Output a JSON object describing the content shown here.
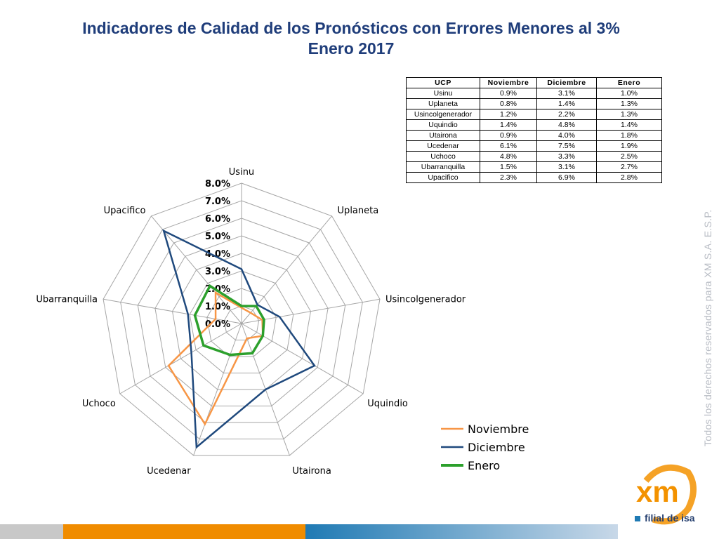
{
  "title": {
    "line1": "Indicadores de Calidad de los Pronósticos con Errores Menores al 3%",
    "line2": "Enero 2017"
  },
  "table": {
    "headers": [
      "UCP",
      "Noviembre",
      "Diciembre",
      "Enero"
    ],
    "rows": [
      [
        "Usinu",
        "0.9%",
        "3.1%",
        "1.0%"
      ],
      [
        "Uplaneta",
        "0.8%",
        "1.4%",
        "1.3%"
      ],
      [
        "Usincolgenerador",
        "1.2%",
        "2.2%",
        "1.3%"
      ],
      [
        "Uquindio",
        "1.4%",
        "4.8%",
        "1.4%"
      ],
      [
        "Utairona",
        "0.9%",
        "4.0%",
        "1.8%"
      ],
      [
        "Ucedenar",
        "6.1%",
        "7.5%",
        "1.9%"
      ],
      [
        "Uchoco",
        "4.8%",
        "3.3%",
        "2.5%"
      ],
      [
        "Ubarranquilla",
        "1.5%",
        "3.1%",
        "2.7%"
      ],
      [
        "Upacifico",
        "2.3%",
        "6.9%",
        "2.8%"
      ]
    ]
  },
  "chart_data": {
    "type": "radar",
    "categories": [
      "Usinu",
      "Uplaneta",
      "Usincolgenerador",
      "Uquindio",
      "Utairona",
      "Ucedenar",
      "Uchoco",
      "Ubarranquilla",
      "Upacifico"
    ],
    "series": [
      {
        "name": "Noviembre",
        "color": "#f79646",
        "values": [
          0.9,
          0.8,
          1.2,
          1.4,
          0.9,
          6.1,
          4.8,
          1.5,
          2.3
        ]
      },
      {
        "name": "Diciembre",
        "color": "#1f497d",
        "values": [
          3.1,
          1.4,
          2.2,
          4.8,
          4.0,
          7.5,
          3.3,
          3.1,
          6.9
        ]
      },
      {
        "name": "Enero",
        "color": "#2ca02c",
        "values": [
          1.0,
          1.3,
          1.3,
          1.4,
          1.8,
          1.9,
          2.5,
          2.7,
          2.8
        ]
      }
    ],
    "radial_ticks": [
      "0.0%",
      "1.0%",
      "2.0%",
      "3.0%",
      "4.0%",
      "5.0%",
      "6.0%",
      "7.0%",
      "8.0%"
    ],
    "rmax": 8.0,
    "grid": true,
    "legend_position": "bottom-right"
  },
  "watermark": "Todos los derechos reservados para XM S.A. E.S.P.",
  "logo": {
    "text": "xm",
    "subtitle": "filial de isa"
  },
  "colors": {
    "title": "#1f3d7a",
    "logo_orange": "#f39200",
    "bar_gray": "#c8c8c8",
    "bar_orange": "#f08c00",
    "bar_blue": "#1f7ab4"
  }
}
